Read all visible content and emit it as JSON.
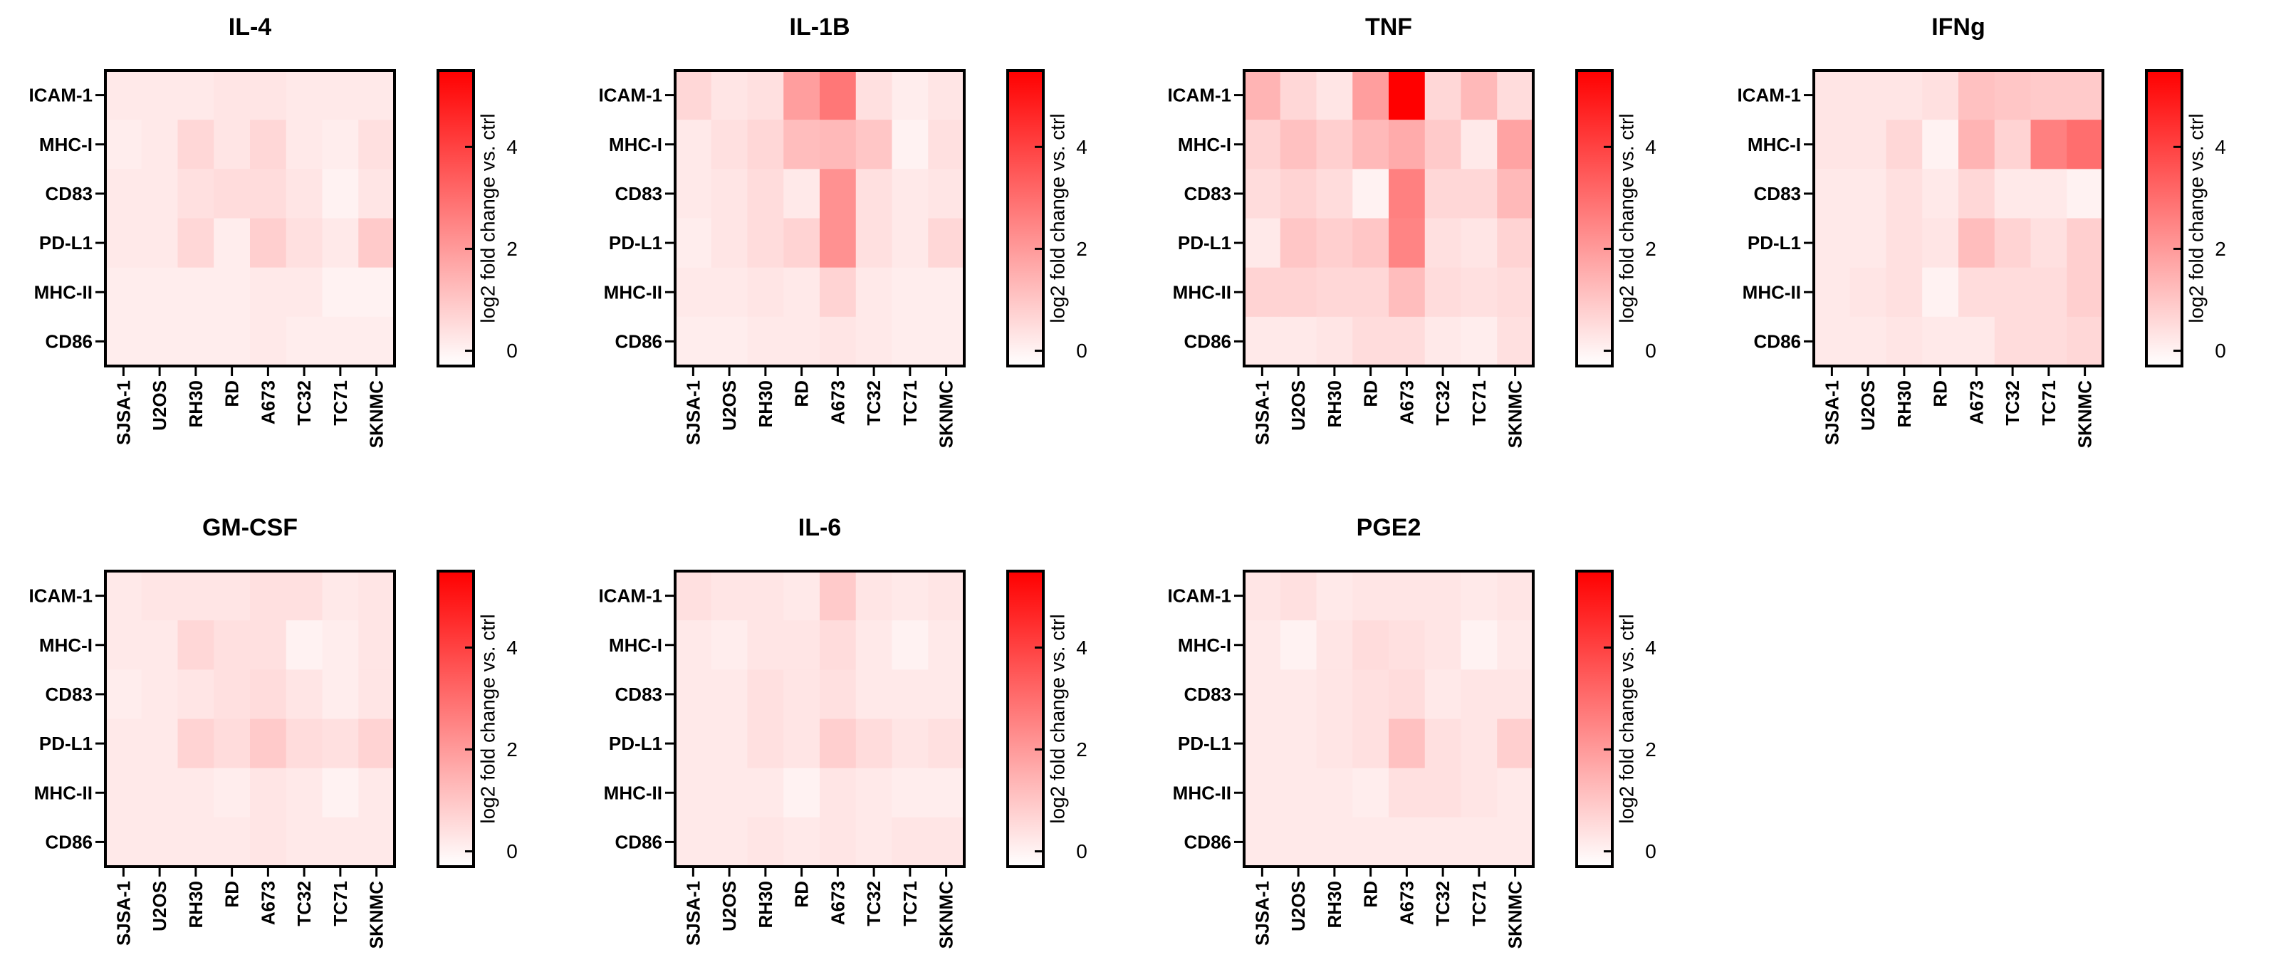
{
  "colors": {
    "high": "#ff0000",
    "low": "#ffffff",
    "frame": "#000000"
  },
  "chart_data": [
    {
      "type": "heatmap",
      "title": "IL-4",
      "rows": [
        "ICAM-1",
        "MHC-I",
        "CD83",
        "PD-L1",
        "MHC-II",
        "CD86"
      ],
      "columns": [
        "SJSA-1",
        "U2OS",
        "RH30",
        "RD",
        "A673",
        "TC32",
        "TC71",
        "SKNMC"
      ],
      "values": [
        [
          0.2,
          0.2,
          0.2,
          0.3,
          0.3,
          0.2,
          0.2,
          0.2
        ],
        [
          0.1,
          0.2,
          0.6,
          0.3,
          0.6,
          0.2,
          0.1,
          0.4
        ],
        [
          0.2,
          0.2,
          0.4,
          0.5,
          0.5,
          0.3,
          0.0,
          0.3
        ],
        [
          0.2,
          0.2,
          0.6,
          0.1,
          0.8,
          0.4,
          0.2,
          0.9
        ],
        [
          0.1,
          0.1,
          0.1,
          0.1,
          0.2,
          0.2,
          0.0,
          0.0
        ],
        [
          0.1,
          0.1,
          0.1,
          0.1,
          0.2,
          0.1,
          0.1,
          0.1
        ]
      ],
      "colorbar": {
        "label": "log2 fold change vs. ctrl",
        "range": [
          -0.3,
          5.5
        ],
        "ticks": [
          "0",
          "2",
          "4"
        ]
      }
    },
    {
      "type": "heatmap",
      "title": "IL-1B",
      "rows": [
        "ICAM-1",
        "MHC-I",
        "CD83",
        "PD-L1",
        "MHC-II",
        "CD86"
      ],
      "columns": [
        "SJSA-1",
        "U2OS",
        "RH30",
        "RD",
        "A673",
        "TC32",
        "TC71",
        "SKNMC"
      ],
      "values": [
        [
          0.6,
          0.3,
          0.4,
          1.9,
          2.8,
          0.4,
          0.1,
          0.3
        ],
        [
          0.2,
          0.4,
          0.6,
          1.2,
          1.3,
          1.0,
          0.0,
          0.4
        ],
        [
          0.2,
          0.3,
          0.5,
          0.2,
          2.2,
          0.4,
          0.2,
          0.3
        ],
        [
          0.1,
          0.3,
          0.5,
          0.7,
          2.2,
          0.4,
          0.2,
          0.6
        ],
        [
          0.2,
          0.2,
          0.3,
          0.2,
          0.7,
          0.2,
          0.1,
          0.1
        ],
        [
          0.1,
          0.1,
          0.2,
          0.2,
          0.3,
          0.2,
          0.1,
          0.1
        ]
      ],
      "colorbar": {
        "label": "log2 fold change vs. ctrl",
        "range": [
          -0.3,
          5.5
        ],
        "ticks": [
          "0",
          "2",
          "4"
        ]
      }
    },
    {
      "type": "heatmap",
      "title": "TNF",
      "rows": [
        "ICAM-1",
        "MHC-I",
        "CD83",
        "PD-L1",
        "MHC-II",
        "CD86"
      ],
      "columns": [
        "SJSA-1",
        "U2OS",
        "RH30",
        "RD",
        "A673",
        "TC32",
        "TC71",
        "SKNMC"
      ],
      "values": [
        [
          1.4,
          0.6,
          0.3,
          1.9,
          5.5,
          0.6,
          1.3,
          0.5
        ],
        [
          0.7,
          1.1,
          0.8,
          1.3,
          1.6,
          0.9,
          0.2,
          1.8
        ],
        [
          0.5,
          0.7,
          0.5,
          0.0,
          2.6,
          0.6,
          0.6,
          1.3
        ],
        [
          0.2,
          1.0,
          0.8,
          1.0,
          2.5,
          0.4,
          0.3,
          0.7
        ],
        [
          0.7,
          0.7,
          0.6,
          0.6,
          1.2,
          0.5,
          0.4,
          0.5
        ],
        [
          0.2,
          0.2,
          0.3,
          0.5,
          0.5,
          0.2,
          0.1,
          0.4
        ]
      ],
      "colorbar": {
        "label": "log2 fold change vs. ctrl",
        "range": [
          -0.3,
          5.5
        ],
        "ticks": [
          "0",
          "2",
          "4"
        ]
      }
    },
    {
      "type": "heatmap",
      "title": "IFNg",
      "rows": [
        "ICAM-1",
        "MHC-I",
        "CD83",
        "PD-L1",
        "MHC-II",
        "CD86"
      ],
      "columns": [
        "SJSA-1",
        "U2OS",
        "RH30",
        "RD",
        "A673",
        "TC32",
        "TC71",
        "SKNMC"
      ],
      "values": [
        [
          0.3,
          0.3,
          0.3,
          0.4,
          1.1,
          1.0,
          0.9,
          0.9
        ],
        [
          0.3,
          0.3,
          0.6,
          0.0,
          1.4,
          0.7,
          2.6,
          3.0
        ],
        [
          0.2,
          0.2,
          0.4,
          0.2,
          0.6,
          0.2,
          0.2,
          0.0
        ],
        [
          0.2,
          0.2,
          0.4,
          0.3,
          1.2,
          0.7,
          0.4,
          0.8
        ],
        [
          0.2,
          0.3,
          0.4,
          0.0,
          0.5,
          0.5,
          0.5,
          0.8
        ],
        [
          0.2,
          0.2,
          0.3,
          0.2,
          0.2,
          0.5,
          0.5,
          0.6
        ]
      ],
      "colorbar": {
        "label": "log2 fold change vs. ctrl",
        "range": [
          -0.3,
          5.5
        ],
        "ticks": [
          "0",
          "2",
          "4"
        ]
      }
    },
    {
      "type": "heatmap",
      "title": "GM-CSF",
      "rows": [
        "ICAM-1",
        "MHC-I",
        "CD83",
        "PD-L1",
        "MHC-II",
        "CD86"
      ],
      "columns": [
        "SJSA-1",
        "U2OS",
        "RH30",
        "RD",
        "A673",
        "TC32",
        "TC71",
        "SKNMC"
      ],
      "values": [
        [
          0.2,
          0.3,
          0.3,
          0.3,
          0.4,
          0.4,
          0.2,
          0.3
        ],
        [
          0.2,
          0.2,
          0.6,
          0.4,
          0.4,
          0.0,
          0.1,
          0.3
        ],
        [
          0.1,
          0.2,
          0.3,
          0.4,
          0.5,
          0.3,
          0.1,
          0.3
        ],
        [
          0.2,
          0.2,
          0.7,
          0.5,
          0.9,
          0.5,
          0.4,
          0.7
        ],
        [
          0.2,
          0.2,
          0.2,
          0.1,
          0.3,
          0.2,
          0.0,
          0.2
        ],
        [
          0.2,
          0.2,
          0.2,
          0.2,
          0.3,
          0.2,
          0.2,
          0.2
        ]
      ],
      "colorbar": {
        "label": "log2 fold change vs. ctrl",
        "range": [
          -0.3,
          5.5
        ],
        "ticks": [
          "0",
          "2",
          "4"
        ]
      }
    },
    {
      "type": "heatmap",
      "title": "IL-6",
      "rows": [
        "ICAM-1",
        "MHC-I",
        "CD83",
        "PD-L1",
        "MHC-II",
        "CD86"
      ],
      "columns": [
        "SJSA-1",
        "U2OS",
        "RH30",
        "RD",
        "A673",
        "TC32",
        "TC71",
        "SKNMC"
      ],
      "values": [
        [
          0.4,
          0.3,
          0.3,
          0.2,
          0.9,
          0.3,
          0.2,
          0.3
        ],
        [
          0.2,
          0.1,
          0.3,
          0.3,
          0.5,
          0.2,
          0.0,
          0.2
        ],
        [
          0.2,
          0.2,
          0.4,
          0.3,
          0.4,
          0.2,
          0.2,
          0.2
        ],
        [
          0.2,
          0.2,
          0.4,
          0.3,
          0.8,
          0.5,
          0.3,
          0.4
        ],
        [
          0.2,
          0.2,
          0.2,
          0.0,
          0.3,
          0.2,
          0.1,
          0.1
        ],
        [
          0.2,
          0.2,
          0.3,
          0.2,
          0.3,
          0.2,
          0.3,
          0.3
        ]
      ],
      "colorbar": {
        "label": "log2 fold change vs. ctrl",
        "range": [
          -0.3,
          5.5
        ],
        "ticks": [
          "0",
          "2",
          "4"
        ]
      }
    },
    {
      "type": "heatmap",
      "title": "PGE2",
      "rows": [
        "ICAM-1",
        "MHC-I",
        "CD83",
        "PD-L1",
        "MHC-II",
        "CD86"
      ],
      "columns": [
        "SJSA-1",
        "U2OS",
        "RH30",
        "RD",
        "A673",
        "TC32",
        "TC71",
        "SKNMC"
      ],
      "values": [
        [
          0.3,
          0.4,
          0.2,
          0.3,
          0.3,
          0.3,
          0.2,
          0.3
        ],
        [
          0.2,
          0.0,
          0.3,
          0.5,
          0.4,
          0.3,
          0.0,
          0.2
        ],
        [
          0.2,
          0.2,
          0.3,
          0.4,
          0.5,
          0.2,
          0.3,
          0.3
        ],
        [
          0.2,
          0.2,
          0.3,
          0.4,
          1.1,
          0.4,
          0.3,
          0.8
        ],
        [
          0.2,
          0.2,
          0.2,
          0.1,
          0.4,
          0.4,
          0.3,
          0.2
        ],
        [
          0.2,
          0.2,
          0.2,
          0.2,
          0.2,
          0.2,
          0.2,
          0.2
        ]
      ],
      "colorbar": {
        "label": "log2 fold change vs. ctrl",
        "range": [
          -0.3,
          5.5
        ],
        "ticks": [
          "0",
          "2",
          "4"
        ]
      }
    }
  ]
}
